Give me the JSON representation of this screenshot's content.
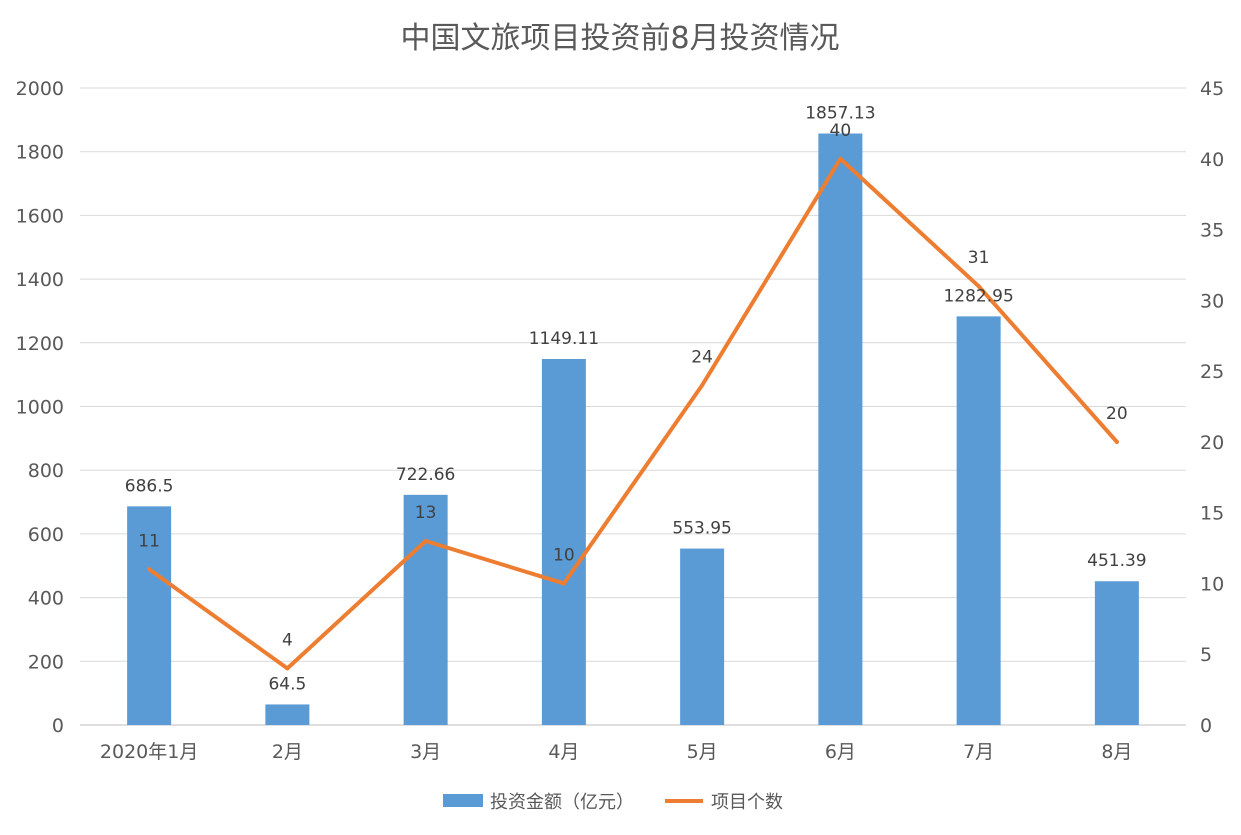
{
  "chart_data": {
    "type": "bar",
    "title": "中国文旅项目投资前8月投资情况",
    "categories": [
      "2020年1月",
      "2月",
      "3月",
      "4月",
      "5月",
      "6月",
      "7月",
      "8月"
    ],
    "series": [
      {
        "name": "投资金额（亿元）",
        "type": "bar",
        "axis": "left",
        "color": "#5B9BD5",
        "values": [
          686.5,
          64.5,
          722.66,
          1149.11,
          553.95,
          1857.13,
          1282.95,
          451.39
        ],
        "labels": [
          "686.5",
          "64.5",
          "722.66",
          "1149.11",
          "553.95",
          "1857.13",
          "1282.95",
          "451.39"
        ]
      },
      {
        "name": "项目个数",
        "type": "line",
        "axis": "right",
        "color": "#ED7D31",
        "values": [
          11,
          4,
          13,
          10,
          24,
          40,
          31,
          20
        ],
        "labels": [
          "11",
          "4",
          "13",
          "10",
          "24",
          "40",
          "31",
          "20"
        ]
      }
    ],
    "y_left": {
      "min": 0,
      "max": 2000,
      "ticks": [
        "0",
        "200",
        "400",
        "600",
        "800",
        "1000",
        "1200",
        "1400",
        "1600",
        "1800",
        "2000"
      ]
    },
    "y_right": {
      "min": 0,
      "max": 45,
      "ticks": [
        "0",
        "5",
        "10",
        "15",
        "20",
        "25",
        "30",
        "35",
        "40",
        "45"
      ]
    },
    "grid": true,
    "legend_position": "bottom"
  }
}
